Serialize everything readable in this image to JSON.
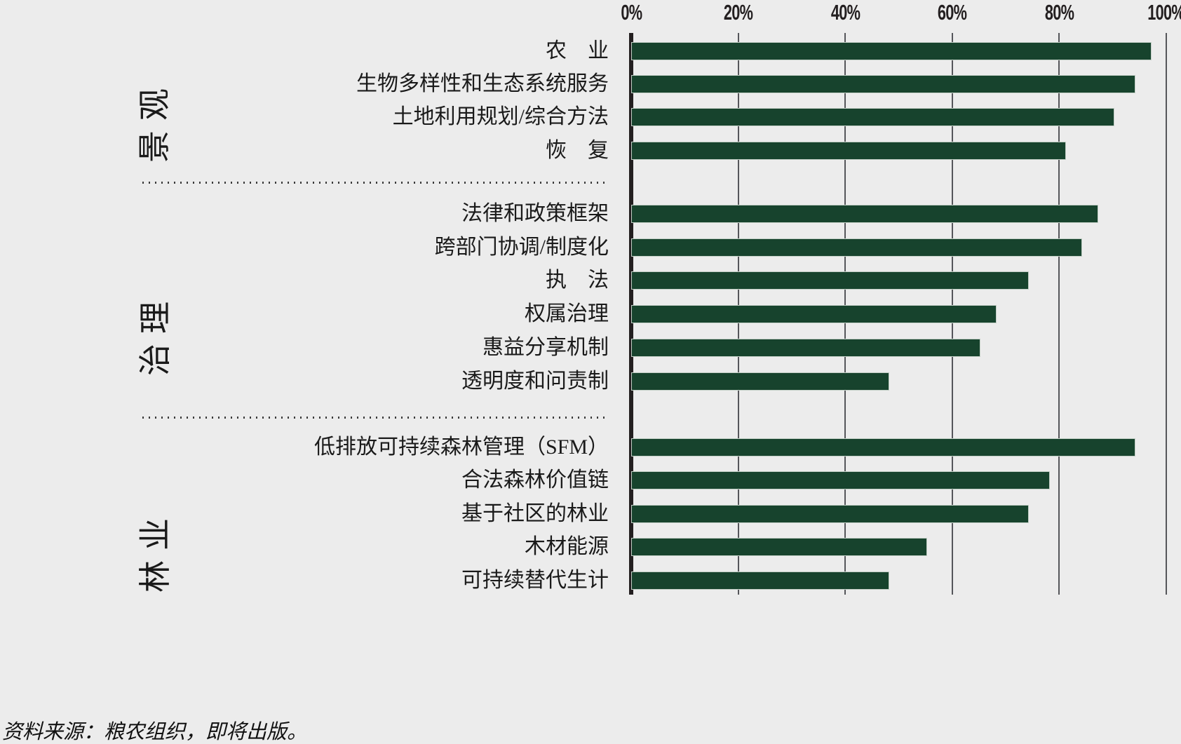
{
  "colors": {
    "background": "#ececec",
    "bar": "#17432d",
    "axis": "#231f20",
    "gridline": "#55565a",
    "text": "#1a1a1a"
  },
  "chart_data": {
    "type": "bar",
    "orientation": "horizontal",
    "unit": "%",
    "bar_color": "#17432d",
    "x_axis": {
      "min": 0,
      "max": 100,
      "ticks": [
        "0%",
        "20%",
        "40%",
        "60%",
        "80%",
        "100%"
      ],
      "grid": true,
      "position": "top"
    },
    "legend": null,
    "groups": [
      {
        "label": "景观",
        "items": [
          {
            "label": "农　业",
            "value": 97
          },
          {
            "label": "生物多样性和生态系统服务",
            "value": 94
          },
          {
            "label": "土地利用规划/综合方法",
            "value": 90
          },
          {
            "label": "恢　复",
            "value": 81
          }
        ]
      },
      {
        "label": "治理",
        "items": [
          {
            "label": "法律和政策框架",
            "value": 87
          },
          {
            "label": "跨部门协调/制度化",
            "value": 84
          },
          {
            "label": "执　法",
            "value": 74
          },
          {
            "label": "权属治理",
            "value": 68
          },
          {
            "label": "惠益分享机制",
            "value": 65
          },
          {
            "label": "透明度和问责制",
            "value": 48
          }
        ]
      },
      {
        "label": "林业",
        "items": [
          {
            "label": "低排放可持续森林管理（SFM）",
            "value": 94
          },
          {
            "label": "合法森林价值链",
            "value": 78
          },
          {
            "label": "基于社区的林业",
            "value": 74
          },
          {
            "label": "木材能源",
            "value": 55
          },
          {
            "label": "可持续替代生计",
            "value": 48
          }
        ]
      }
    ],
    "source": "资料来源：粮农组织，即将出版。"
  }
}
